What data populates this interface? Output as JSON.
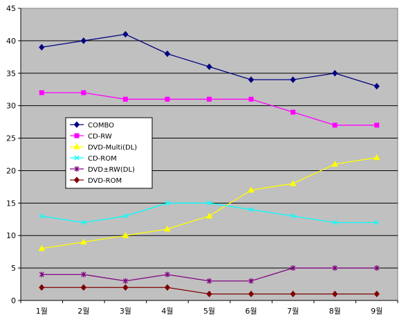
{
  "chart_data": {
    "type": "line",
    "categories": [
      "1월",
      "2월",
      "3월",
      "4월",
      "5월",
      "6월",
      "7월",
      "8월",
      "9월"
    ],
    "ylim": [
      0,
      45
    ],
    "yticks": [
      0,
      5,
      10,
      15,
      20,
      25,
      30,
      35,
      40,
      45
    ],
    "grid": "horizontal",
    "plot_background": "#c0c0c0",
    "legend_position": "left-middle",
    "series": [
      {
        "name": "COMBO",
        "color": "#000080",
        "marker": "diamond",
        "values": [
          39,
          40,
          41,
          38,
          36,
          34,
          34,
          35,
          33
        ]
      },
      {
        "name": "CD-RW",
        "color": "#ff00ff",
        "marker": "square",
        "values": [
          32,
          32,
          31,
          31,
          31,
          31,
          29,
          27,
          27
        ]
      },
      {
        "name": "DVD-Multi(DL)",
        "color": "#ffff00",
        "marker": "triangle",
        "values": [
          8,
          9,
          10,
          11,
          13,
          17,
          18,
          21,
          22
        ]
      },
      {
        "name": "CD-ROM",
        "color": "#00ffff",
        "marker": "x",
        "values": [
          13,
          12,
          13,
          15,
          15,
          14,
          13,
          12,
          12
        ]
      },
      {
        "name": "DVD±RW(DL)",
        "color": "#800080",
        "marker": "star",
        "values": [
          4,
          4,
          3,
          4,
          3,
          3,
          5,
          5,
          5
        ]
      },
      {
        "name": "DVD-ROM",
        "color": "#800000",
        "marker": "diamond",
        "values": [
          2,
          2,
          2,
          2,
          1,
          1,
          1,
          1,
          1
        ]
      }
    ]
  }
}
